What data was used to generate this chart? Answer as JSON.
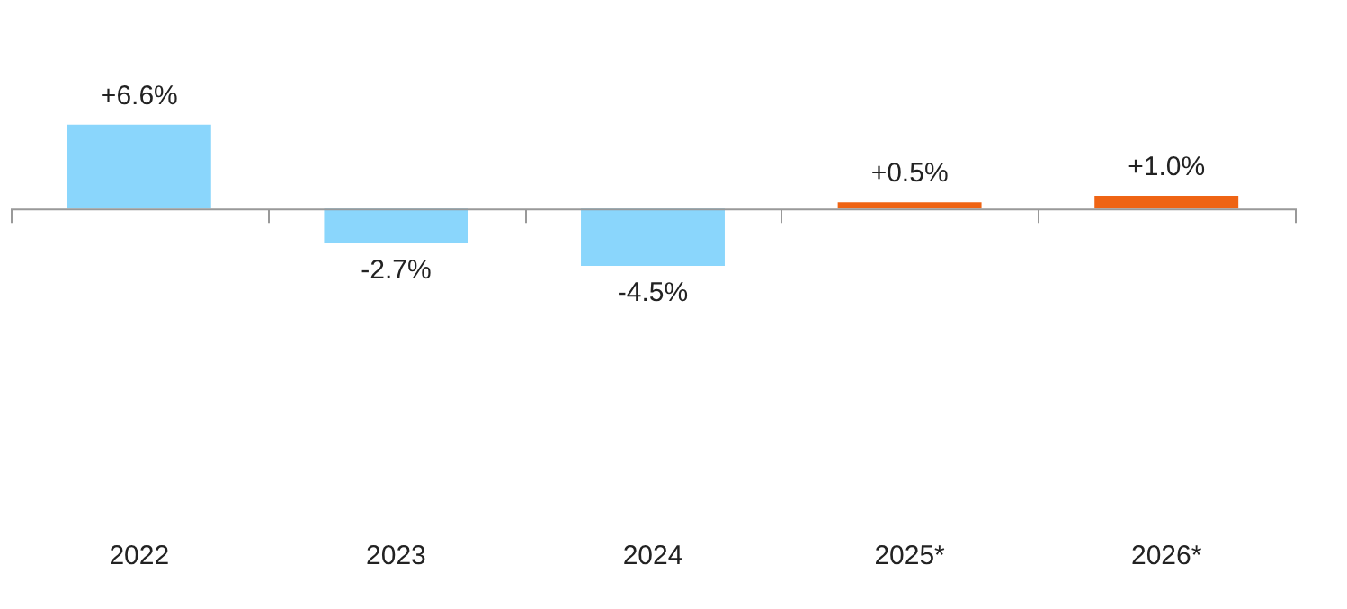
{
  "chart_data": {
    "type": "bar",
    "categories": [
      "2022",
      "2023",
      "2024",
      "2025*",
      "2026*"
    ],
    "values": [
      6.6,
      -2.7,
      -4.5,
      0.5,
      1.0
    ],
    "colors": [
      "#8ad6fc",
      "#8ad6fc",
      "#8ad6fc",
      "#ef6414",
      "#ef6414"
    ],
    "value_labels": [
      "+6.6%",
      "-2.7%",
      "-4.5%",
      "+0.5%",
      "+1.0%"
    ]
  }
}
